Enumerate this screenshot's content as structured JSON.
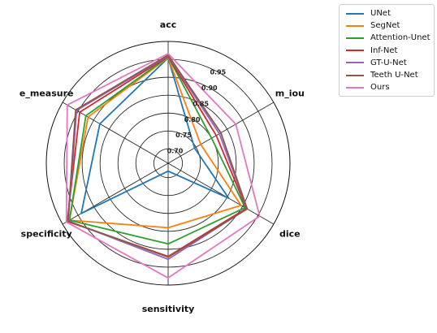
{
  "chart_data": {
    "type": "radar",
    "axes": [
      "acc",
      "m_iou",
      "dice",
      "sensitivity",
      "specificity",
      "e_measure"
    ],
    "ticks": [
      "0.70",
      "0.75",
      "0.80",
      "0.85",
      "0.90",
      "0.95"
    ],
    "rlim": [
      0.66,
      1.0
    ],
    "grid": true,
    "legend_position": "top-right",
    "series": [
      {
        "name": "UNet",
        "color": "#1f77b4",
        "values": [
          0.954,
          0.745,
          0.855,
          0.682,
          0.94,
          0.88
        ]
      },
      {
        "name": "SegNet",
        "color": "#ff7f0e",
        "values": [
          0.955,
          0.765,
          0.895,
          0.84,
          0.978,
          0.918
        ]
      },
      {
        "name": "Attention-Unet",
        "color": "#2ca02c",
        "values": [
          0.957,
          0.8,
          0.908,
          0.885,
          0.978,
          0.925
        ]
      },
      {
        "name": "Inf-Net",
        "color": "#d62728",
        "values": [
          0.958,
          0.815,
          0.912,
          0.92,
          0.985,
          0.945
        ]
      },
      {
        "name": "GT-U-Net",
        "color": "#9467bd",
        "values": [
          0.96,
          0.825,
          0.914,
          0.928,
          0.982,
          0.955
        ]
      },
      {
        "name": "Teeth U-Net",
        "color": "#8c564b",
        "values": [
          0.962,
          0.83,
          0.915,
          0.922,
          0.983,
          0.958
        ]
      },
      {
        "name": "Ours",
        "color": "#e377c2",
        "values": [
          0.966,
          0.878,
          0.955,
          0.98,
          0.988,
          0.985
        ]
      }
    ]
  }
}
